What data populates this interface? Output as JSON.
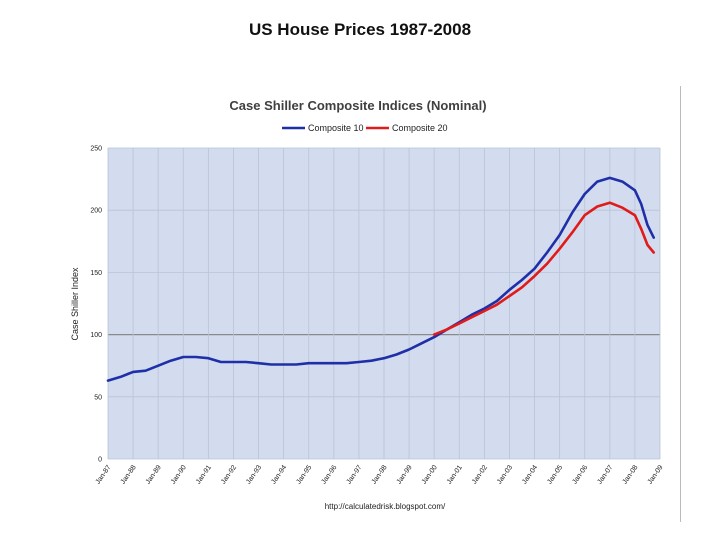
{
  "slide": {
    "title": "US House Prices 1987-2008"
  },
  "chart_data": {
    "type": "line",
    "title": "Case Shiller Composite Indices (Nominal)",
    "ylabel": "Case Shiller Index",
    "xlabel": "",
    "source": "http://calculatedrisk.blogspot.com/",
    "ylim": [
      0,
      250
    ],
    "yticks": [
      0,
      50,
      100,
      150,
      200,
      250
    ],
    "xlim": [
      1987,
      2009
    ],
    "xticks": [
      "Jan-87",
      "Jan-88",
      "Jan-89",
      "Jan-90",
      "Jan-91",
      "Jan-92",
      "Jan-93",
      "Jan-94",
      "Jan-95",
      "Jan-96",
      "Jan-97",
      "Jan-98",
      "Jan-99",
      "Jan-00",
      "Jan-01",
      "Jan-02",
      "Jan-03",
      "Jan-04",
      "Jan-05",
      "Jan-06",
      "Jan-07",
      "Jan-08",
      "Jan-09"
    ],
    "grid": true,
    "reference_line": 100,
    "legend_position": "top",
    "colors": {
      "Composite 10": "#1f2fa8",
      "Composite 20": "#e01b1b",
      "plot_bg": "#d3dcee",
      "grid": "#b9c3d8",
      "ref_line": "#8a8a8a"
    },
    "series": [
      {
        "name": "Composite 10",
        "x": [
          1987.0,
          1987.5,
          1988.0,
          1988.5,
          1989.0,
          1989.5,
          1990.0,
          1990.5,
          1991.0,
          1991.5,
          1992.0,
          1992.5,
          1993.0,
          1993.5,
          1994.0,
          1994.5,
          1995.0,
          1995.5,
          1996.0,
          1996.5,
          1997.0,
          1997.5,
          1998.0,
          1998.5,
          1999.0,
          1999.5,
          2000.0,
          2000.5,
          2001.0,
          2001.5,
          2002.0,
          2002.5,
          2003.0,
          2003.5,
          2004.0,
          2004.5,
          2005.0,
          2005.5,
          2006.0,
          2006.5,
          2007.0,
          2007.5,
          2008.0,
          2008.25,
          2008.5,
          2008.75
        ],
        "values": [
          63,
          66,
          70,
          71,
          75,
          79,
          82,
          82,
          81,
          78,
          78,
          78,
          77,
          76,
          76,
          76,
          77,
          77,
          77,
          77,
          78,
          79,
          81,
          84,
          88,
          93,
          98,
          104,
          110,
          116,
          121,
          127,
          136,
          144,
          153,
          166,
          180,
          198,
          213,
          223,
          226,
          223,
          216,
          205,
          188,
          178
        ]
      },
      {
        "name": "Composite 20",
        "x": [
          2000.0,
          2000.5,
          2001.0,
          2001.5,
          2002.0,
          2002.5,
          2003.0,
          2003.5,
          2004.0,
          2004.5,
          2005.0,
          2005.5,
          2006.0,
          2006.5,
          2007.0,
          2007.5,
          2008.0,
          2008.25,
          2008.5,
          2008.75
        ],
        "values": [
          100,
          104,
          109,
          114,
          119,
          124,
          131,
          138,
          147,
          157,
          169,
          182,
          196,
          203,
          206,
          202,
          196,
          185,
          172,
          166
        ]
      }
    ]
  }
}
